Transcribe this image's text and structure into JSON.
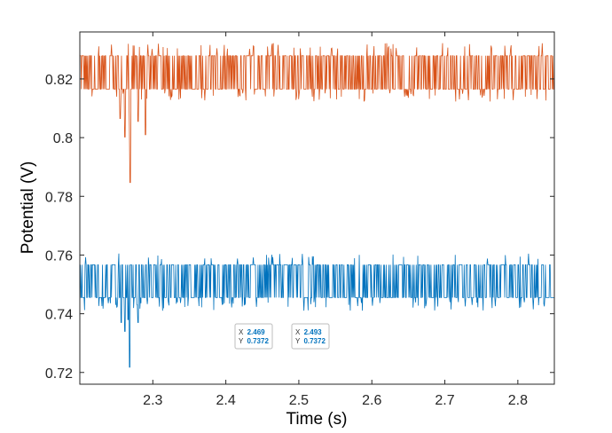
{
  "chart_data": {
    "type": "line",
    "xlabel": "Time (s)",
    "ylabel": "Potential (V)",
    "xlim": [
      2.2,
      2.85
    ],
    "ylim": [
      0.716,
      0.836
    ],
    "xticks": [
      "2.3",
      "2.4",
      "2.5",
      "2.6",
      "2.7",
      "2.8"
    ],
    "yticks": [
      "0.72",
      "0.74",
      "0.76",
      "0.78",
      "0.8",
      "0.82"
    ],
    "grid": false,
    "legend": "none",
    "series": [
      {
        "color": "#D95319",
        "x": [
          2.2,
          2.85
        ],
        "base_levels": [
          0.8165,
          0.8279
        ],
        "range": [
          0.8123,
          0.8322
        ],
        "dips": [
          [
            2.255,
            0.8065
          ],
          [
            2.262,
            0.8002
          ],
          [
            2.268,
            0.8036
          ],
          [
            2.269,
            0.7847
          ],
          [
            2.28,
            0.8055
          ],
          [
            2.29,
            0.801
          ]
        ]
      },
      {
        "color": "#0072BD",
        "x": [
          2.2,
          2.85
        ],
        "base_levels": [
          0.7455,
          0.7567
        ],
        "range": [
          0.741,
          0.7606
        ],
        "dips": [
          [
            2.257,
            0.737
          ],
          [
            2.262,
            0.734
          ],
          [
            2.266,
            0.738
          ],
          [
            2.268,
            0.7218
          ],
          [
            2.28,
            0.737
          ]
        ]
      }
    ],
    "datatips": [
      {
        "x_label": "X",
        "x_value": "2.469",
        "y_label": "Y",
        "y_value": "0.7372"
      },
      {
        "x_label": "X",
        "x_value": "2.493",
        "y_label": "Y",
        "y_value": "0.7372"
      }
    ]
  }
}
